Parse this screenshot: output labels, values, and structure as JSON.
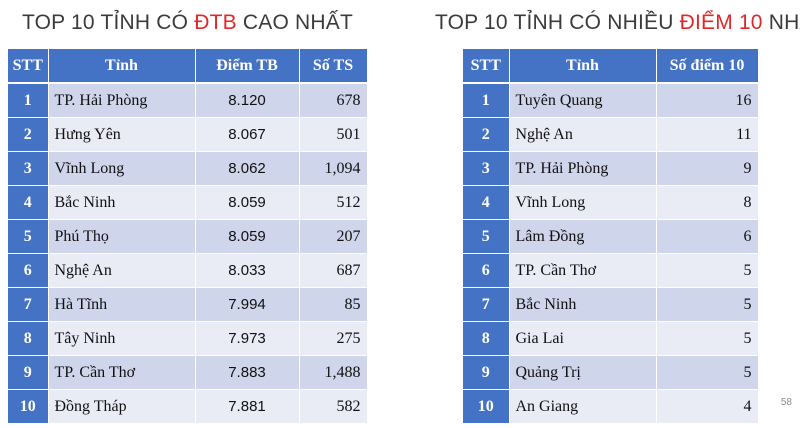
{
  "left": {
    "title_prefix": "TOP 10 TỈNH CÓ ",
    "title_highlight": "ĐTB",
    "title_suffix": " CAO NHẤT",
    "highlight_color": "#e0282a",
    "headers": [
      "STT",
      "Tỉnh",
      "Điểm TB",
      "Số TS"
    ],
    "rows": [
      {
        "stt": "1",
        "province": "TP. Hải Phòng",
        "avg": "8.120",
        "count": "678"
      },
      {
        "stt": "2",
        "province": "Hưng Yên",
        "avg": "8.067",
        "count": "501"
      },
      {
        "stt": "3",
        "province": "Vĩnh Long",
        "avg": "8.062",
        "count": "1,094"
      },
      {
        "stt": "4",
        "province": "Bắc Ninh",
        "avg": "8.059",
        "count": "512"
      },
      {
        "stt": "5",
        "province": "Phú Thọ",
        "avg": "8.059",
        "count": "207"
      },
      {
        "stt": "6",
        "province": "Nghệ An",
        "avg": "8.033",
        "count": "687"
      },
      {
        "stt": "7",
        "province": "Hà Tĩnh",
        "avg": "7.994",
        "count": "85"
      },
      {
        "stt": "8",
        "province": "Tây Ninh",
        "avg": "7.973",
        "count": "275"
      },
      {
        "stt": "9",
        "province": "TP. Cần Thơ",
        "avg": "7.883",
        "count": "1,488"
      },
      {
        "stt": "10",
        "province": "Đồng Tháp",
        "avg": "7.881",
        "count": "582"
      }
    ]
  },
  "right": {
    "title_prefix": "TOP 10 TỈNH CÓ NHIỀU ",
    "title_highlight": "ĐIỂM 10",
    "title_suffix": " NHẤT",
    "highlight_color": "#e0282a",
    "headers": [
      "STT",
      "Tỉnh",
      "Số điểm 10"
    ],
    "rows": [
      {
        "stt": "1",
        "province": "Tuyên Quang",
        "tens": "16"
      },
      {
        "stt": "2",
        "province": "Nghệ An",
        "tens": "11"
      },
      {
        "stt": "3",
        "province": "TP. Hải Phòng",
        "tens": "9"
      },
      {
        "stt": "4",
        "province": "Vĩnh Long",
        "tens": "8"
      },
      {
        "stt": "5",
        "province": "Lâm Đồng",
        "tens": "6"
      },
      {
        "stt": "6",
        "province": "TP. Cần Thơ",
        "tens": "5"
      },
      {
        "stt": "7",
        "province": "Bắc Ninh",
        "tens": "5"
      },
      {
        "stt": "8",
        "province": "Gia Lai",
        "tens": "5"
      },
      {
        "stt": "9",
        "province": "Quảng Trị",
        "tens": "5"
      },
      {
        "stt": "10",
        "province": "An Giang",
        "tens": "4"
      }
    ]
  },
  "page_number": "58",
  "colors": {
    "header_bg": "#4472c4",
    "row_odd": "#cfd5ea",
    "row_even": "#e9ebf5"
  }
}
